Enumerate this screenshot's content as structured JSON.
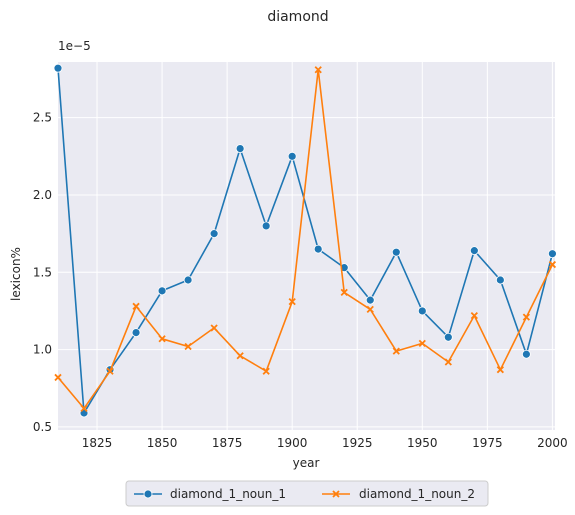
{
  "chart_data": {
    "type": "line",
    "title": "diamond",
    "xlabel": "year",
    "ylabel": "lexicon%",
    "y_offset_label": "1e−5",
    "xlim": [
      1810,
      2001
    ],
    "ylim": [
      0.48,
      2.86
    ],
    "x_ticks": [
      1825,
      1850,
      1875,
      1900,
      1925,
      1950,
      1975,
      2000
    ],
    "y_ticks": [
      0.5,
      1.0,
      1.5,
      2.0,
      2.5
    ],
    "y_tick_labels": [
      "0.5",
      "1.0",
      "1.5",
      "2.0",
      "2.5"
    ],
    "grid": true,
    "legend_position": "bottom-center",
    "x": [
      1810,
      1820,
      1830,
      1840,
      1850,
      1860,
      1870,
      1880,
      1890,
      1900,
      1910,
      1920,
      1930,
      1940,
      1950,
      1960,
      1970,
      1980,
      1990,
      2000
    ],
    "series": [
      {
        "name": "diamond_1_noun_1",
        "marker": "circle",
        "color": "#1f77b4",
        "values": [
          2.82,
          0.59,
          0.87,
          1.11,
          1.38,
          1.45,
          1.75,
          2.3,
          1.8,
          2.25,
          1.65,
          1.53,
          1.32,
          1.63,
          1.25,
          1.08,
          1.64,
          1.45,
          0.97,
          1.62
        ]
      },
      {
        "name": "diamond_1_noun_2",
        "marker": "x",
        "color": "#ff7f0e",
        "values": [
          0.82,
          0.62,
          0.86,
          1.28,
          1.07,
          1.02,
          1.14,
          0.96,
          0.86,
          1.31,
          2.81,
          1.37,
          1.26,
          0.99,
          1.04,
          0.92,
          1.22,
          0.87,
          1.21,
          1.55
        ]
      }
    ]
  }
}
